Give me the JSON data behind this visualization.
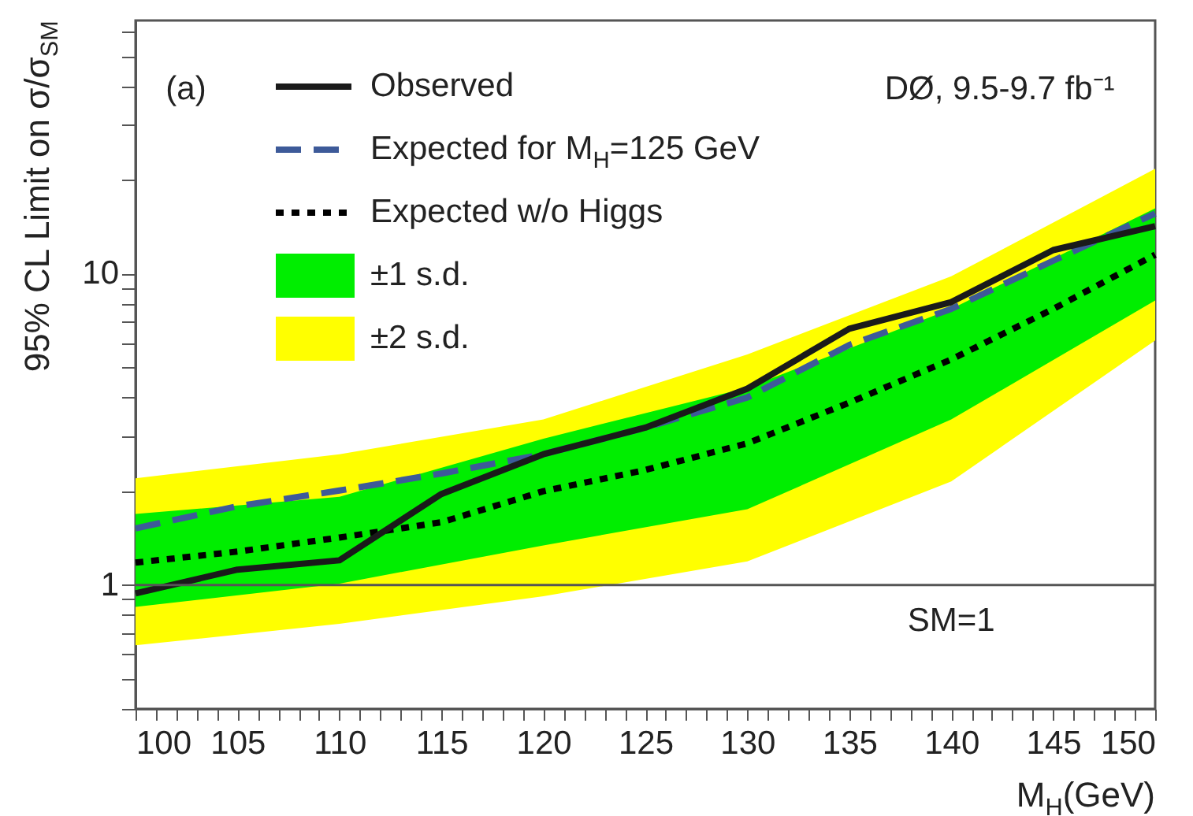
{
  "chart_data": {
    "type": "line",
    "xlabel": "M$_{H}$(GeV)",
    "ylabel": "95% CL Limit on σ/σ$_{SM}$",
    "annotations": [
      "(a)",
      "DØ, 9.5-9.7 fb⁻¹"
    ],
    "log": "y",
    "grid": false,
    "legend": "top left",
    "marker": "none",
    "xlim": [
      100,
      150
    ],
    "ylim": [
      0.4,
      65
    ],
    "xticks": [
      100,
      {
        "value": 101,
        "label": null
      },
      {
        "value": 102,
        "label": null
      },
      {
        "value": 103,
        "label": null
      },
      {
        "value": 104,
        "label": null
      },
      105,
      {
        "value": 106,
        "label": null
      },
      {
        "value": 107,
        "label": null
      },
      {
        "value": 108,
        "label": null
      },
      {
        "value": 109,
        "label": null
      },
      110,
      {
        "value": 111,
        "label": null
      },
      {
        "value": 112,
        "label": null
      },
      {
        "value": 113,
        "label": null
      },
      {
        "value": 114,
        "label": null
      },
      115,
      {
        "value": 116,
        "label": null
      },
      {
        "value": 117,
        "label": null
      },
      {
        "value": 118,
        "label": null
      },
      {
        "value": 119,
        "label": null
      },
      120,
      {
        "value": 121,
        "label": null
      },
      {
        "value": 122,
        "label": null
      },
      {
        "value": 123,
        "label": null
      },
      {
        "value": 124,
        "label": null
      },
      125,
      {
        "value": 126,
        "label": null
      },
      {
        "value": 127,
        "label": null
      },
      {
        "value": 128,
        "label": null
      },
      {
        "value": 129,
        "label": null
      },
      130,
      {
        "value": 131,
        "label": null
      },
      {
        "value": 132,
        "label": null
      },
      {
        "value": 133,
        "label": null
      },
      {
        "value": 134,
        "label": null
      },
      135,
      {
        "value": 136,
        "label": null
      },
      {
        "value": 137,
        "label": null
      },
      {
        "value": 138,
        "label": null
      },
      {
        "value": 139,
        "label": null
      },
      140,
      {
        "value": 141,
        "label": null
      },
      {
        "value": 142,
        "label": null
      },
      {
        "value": 143,
        "label": null
      },
      {
        "value": 144,
        "label": null
      },
      145,
      {
        "value": 146,
        "label": null
      },
      {
        "value": 147,
        "label": null
      },
      {
        "value": 148,
        "label": null
      },
      {
        "value": 149,
        "label": null
      },
      150
    ],
    "yticks": [
      {
        "value": 0.4,
        "label": null
      },
      {
        "value": 0.5,
        "label": null
      },
      {
        "value": 0.6,
        "label": null
      },
      {
        "value": 0.7,
        "label": null
      },
      {
        "value": 0.8,
        "label": null
      },
      {
        "value": 0.9,
        "label": null
      },
      1,
      {
        "value": 2,
        "label": null
      },
      {
        "value": 3,
        "label": null
      },
      {
        "value": 4,
        "label": null
      },
      {
        "value": 5,
        "label": null
      },
      {
        "value": 6,
        "label": null
      },
      {
        "value": 7,
        "label": null
      },
      {
        "value": 8,
        "label": null
      },
      {
        "value": 9,
        "label": null
      },
      10,
      {
        "value": 20,
        "label": null
      },
      {
        "value": 30,
        "label": null
      },
      {
        "value": 40,
        "label": null
      },
      {
        "value": 50,
        "label": null
      },
      {
        "value": 60,
        "label": null
      }
    ],
    "ref_lines": [
      {
        "axis": "y",
        "value": 1,
        "label": "SM=1",
        "color": "#555555",
        "line_style": "solid"
      }
    ],
    "series": [
      {
        "name": "±2 s.d.",
        "type": "area",
        "color": "#ffff00",
        "x": [
          100,
          110,
          120,
          130,
          140,
          150
        ],
        "values": [
          null,
          null,
          null,
          null,
          null,
          null
        ],
        "lower": [
          0.64,
          0.75,
          0.92,
          1.19,
          2.15,
          6.1
        ],
        "upper": [
          2.2,
          2.63,
          3.4,
          5.5,
          9.8,
          21.7
        ]
      },
      {
        "name": "±1 s.d.",
        "type": "area",
        "color": "#00ee00",
        "x": [
          100,
          110,
          120,
          130,
          140,
          150
        ],
        "values": [
          null,
          null,
          null,
          null,
          null,
          null
        ],
        "lower": [
          0.85,
          1.01,
          1.34,
          1.75,
          3.4,
          8.2
        ],
        "upper": [
          1.69,
          1.92,
          2.95,
          4.3,
          7.7,
          16.2
        ]
      },
      {
        "name": "Expected w/o Higgs",
        "line_style": "dotted",
        "color": "#000000",
        "x": [
          100,
          105,
          110,
          115,
          120,
          125,
          130,
          135,
          140,
          145,
          150
        ],
        "values": [
          1.18,
          1.28,
          1.42,
          1.59,
          2.0,
          2.34,
          2.85,
          3.85,
          5.3,
          7.7,
          11.5
        ]
      },
      {
        "name": "Expected for M$_{H}$=125 GeV",
        "line_style": "dashed",
        "color": "#3d5a99",
        "x": [
          100,
          105,
          110,
          115,
          120,
          125,
          130,
          135,
          140,
          145,
          150
        ],
        "values": [
          1.52,
          1.79,
          2.01,
          2.28,
          2.63,
          3.2,
          4.0,
          5.9,
          7.7,
          11.0,
          15.6
        ]
      },
      {
        "name": "Observed",
        "line_style": "solid",
        "color": "#1a1a1a",
        "x": [
          100,
          105,
          110,
          115,
          120,
          125,
          130,
          135,
          140,
          145,
          150
        ],
        "values": [
          0.94,
          1.12,
          1.2,
          1.96,
          2.63,
          3.2,
          4.27,
          6.65,
          8.1,
          11.9,
          14.2
        ]
      }
    ]
  }
}
